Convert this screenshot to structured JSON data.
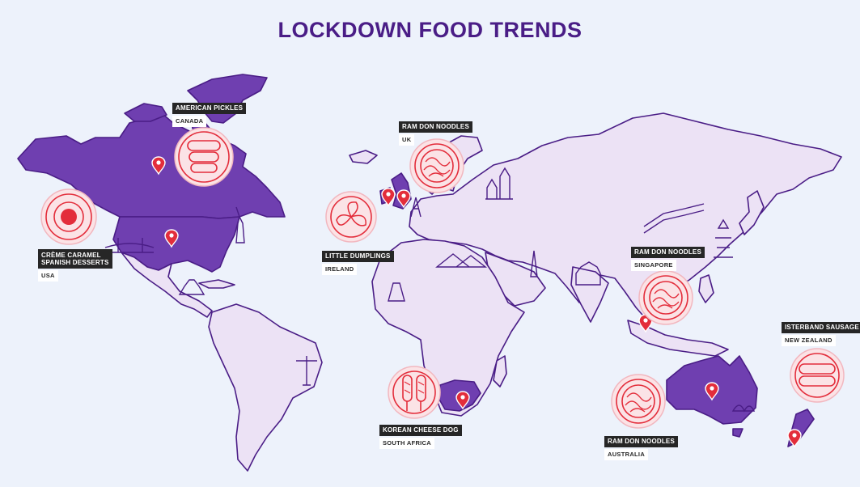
{
  "title": "LOCKDOWN FOOD TRENDS",
  "colors": {
    "background": "#edf2fb",
    "land": "#ece2f5",
    "highlight": "#6f3fb0",
    "outline": "#4a1d86",
    "pin": "#e32d3b",
    "icon_circle": "#fbe3e6"
  },
  "markers": [
    {
      "food": "AMERICAN PICKLES",
      "country": "CANADA",
      "icon": "pickles-icon"
    },
    {
      "food": "CRÈME CARAMEL\nSPANISH DESSERTS",
      "country": "USA",
      "icon": "creme-caramel-icon"
    },
    {
      "food": "RAM DON NOODLES",
      "country": "UK",
      "icon": "noodle-bowl-icon"
    },
    {
      "food": "LITTLE DUMPLINGS",
      "country": "IRELAND",
      "icon": "dumplings-icon"
    },
    {
      "food": "RAM DON NOODLES",
      "country": "SINGAPORE",
      "icon": "noodle-bowl-icon"
    },
    {
      "food": "KOREAN CHEESE DOG",
      "country": "SOUTH AFRICA",
      "icon": "corn-dog-icon"
    },
    {
      "food": "RAM DON NOODLES",
      "country": "AUSTRALIA",
      "icon": "noodle-bowl-icon"
    },
    {
      "food": "ISTERBAND SAUSAGE",
      "country": "NEW ZEALAND",
      "icon": "sausage-icon"
    }
  ]
}
